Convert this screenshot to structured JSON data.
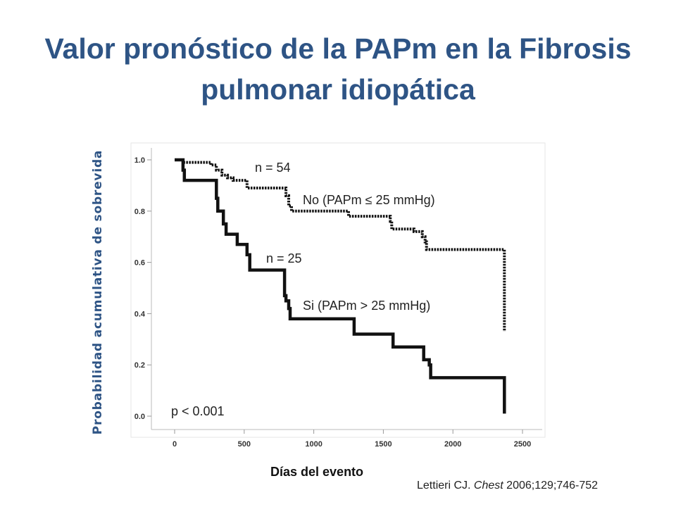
{
  "slide": {
    "title_line1": "Valor pronóstico de la PAPm en la Fibrosis",
    "title_line2": "pulmonar idiopática",
    "citation_author": "Lettieri CJ.",
    "citation_journal": "Chest",
    "citation_details": "2006;129;746-752"
  },
  "chart_data": {
    "type": "line",
    "title": "",
    "xlabel": "Días del evento",
    "ylabel": "Probabilidad acumulativa de sobrevida",
    "xlim": [
      0,
      2500
    ],
    "ylim": [
      0,
      1.0
    ],
    "x_ticks": [
      "0",
      "500",
      "1000",
      "1500",
      "2000",
      "2500"
    ],
    "y_ticks": [
      "0.0",
      "0.2",
      "0.4",
      "0.6",
      "0.8",
      "1.0"
    ],
    "grid": false,
    "series": [
      {
        "name": "No (PAPm ≤ 25 mmHg)",
        "n_label": "n = 54",
        "style": "dotted",
        "points": [
          [
            0,
            1.0
          ],
          [
            60,
            0.99
          ],
          [
            260,
            0.98
          ],
          [
            300,
            0.96
          ],
          [
            340,
            0.94
          ],
          [
            380,
            0.93
          ],
          [
            420,
            0.92
          ],
          [
            520,
            0.89
          ],
          [
            800,
            0.86
          ],
          [
            820,
            0.82
          ],
          [
            840,
            0.8
          ],
          [
            1250,
            0.78
          ],
          [
            1550,
            0.76
          ],
          [
            1560,
            0.73
          ],
          [
            1720,
            0.72
          ],
          [
            1780,
            0.7
          ],
          [
            1800,
            0.68
          ],
          [
            1810,
            0.65
          ],
          [
            2370,
            0.65
          ],
          [
            2370,
            0.33
          ]
        ]
      },
      {
        "name": "Si (PAPm > 25 mmHg)",
        "n_label": "n = 25",
        "style": "solid",
        "points": [
          [
            0,
            1.0
          ],
          [
            60,
            0.96
          ],
          [
            70,
            0.92
          ],
          [
            280,
            0.92
          ],
          [
            300,
            0.85
          ],
          [
            310,
            0.8
          ],
          [
            350,
            0.75
          ],
          [
            370,
            0.71
          ],
          [
            450,
            0.67
          ],
          [
            520,
            0.63
          ],
          [
            540,
            0.57
          ],
          [
            780,
            0.57
          ],
          [
            790,
            0.47
          ],
          [
            800,
            0.45
          ],
          [
            820,
            0.42
          ],
          [
            830,
            0.38
          ],
          [
            1280,
            0.38
          ],
          [
            1290,
            0.32
          ],
          [
            1550,
            0.32
          ],
          [
            1570,
            0.27
          ],
          [
            1770,
            0.27
          ],
          [
            1790,
            0.22
          ],
          [
            1830,
            0.2
          ],
          [
            1840,
            0.15
          ],
          [
            2370,
            0.15
          ],
          [
            2370,
            0.01
          ]
        ]
      }
    ],
    "annotations": {
      "p_value": "p < 0.001"
    }
  }
}
